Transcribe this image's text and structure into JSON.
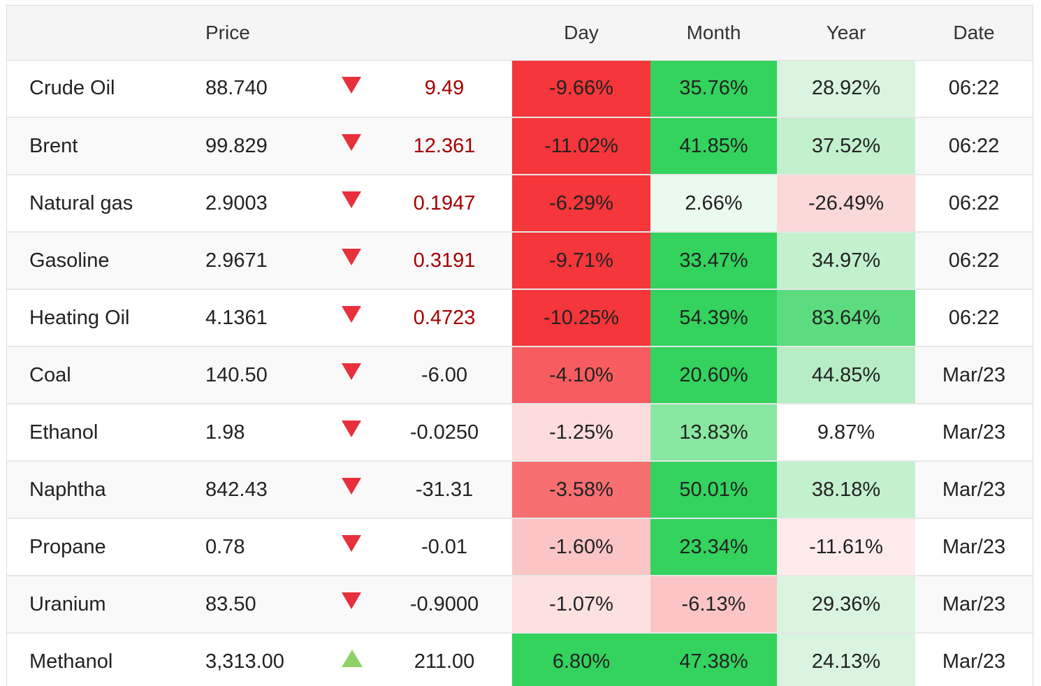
{
  "headers": {
    "name": "",
    "price": "Price",
    "arrow": "",
    "change": "",
    "day": "Day",
    "month": "Month",
    "year": "Year",
    "date": "Date"
  },
  "rows": [
    {
      "name": "Crude Oil",
      "price": "88.740",
      "direction": "down",
      "change": "9.49",
      "change_red": true,
      "day": "-9.66%",
      "month": "35.76%",
      "year": "28.92%",
      "date": "06:22",
      "day_bg": "#f5363a",
      "month_bg": "#33d35d",
      "year_bg": "#d9f5df"
    },
    {
      "name": "Brent",
      "price": "99.829",
      "direction": "down",
      "change": "12.361",
      "change_red": true,
      "day": "-11.02%",
      "month": "41.85%",
      "year": "37.52%",
      "date": "06:22",
      "day_bg": "#f5363a",
      "month_bg": "#33d35d",
      "year_bg": "#c3f0cd"
    },
    {
      "name": "Natural gas",
      "price": "2.9003",
      "direction": "down",
      "change": "0.1947",
      "change_red": true,
      "day": "-6.29%",
      "month": "2.66%",
      "year": "-26.49%",
      "date": "06:22",
      "day_bg": "#f5363a",
      "month_bg": "#ebfaee",
      "year_bg": "#fbd9d9"
    },
    {
      "name": "Gasoline",
      "price": "2.9671",
      "direction": "down",
      "change": "0.3191",
      "change_red": true,
      "day": "-9.71%",
      "month": "33.47%",
      "year": "34.97%",
      "date": "06:22",
      "day_bg": "#f5363a",
      "month_bg": "#33d35d",
      "year_bg": "#c3f0cd"
    },
    {
      "name": "Heating Oil",
      "price": "4.1361",
      "direction": "down",
      "change": "0.4723",
      "change_red": true,
      "day": "-10.25%",
      "month": "54.39%",
      "year": "83.64%",
      "date": "06:22",
      "day_bg": "#f5363a",
      "month_bg": "#33d35d",
      "year_bg": "#5cdc7e"
    },
    {
      "name": "Coal",
      "price": "140.50",
      "direction": "down",
      "change": "-6.00",
      "change_red": false,
      "day": "-4.10%",
      "month": "20.60%",
      "year": "44.85%",
      "date": "Mar/23",
      "day_bg": "#f75d60",
      "month_bg": "#33d35d",
      "year_bg": "#b7edc4"
    },
    {
      "name": "Ethanol",
      "price": "1.98",
      "direction": "down",
      "change": "-0.0250",
      "change_red": false,
      "day": "-1.25%",
      "month": "13.83%",
      "year": "9.87%",
      "date": "Mar/23",
      "day_bg": "#fcdcdc",
      "month_bg": "#88e7a0",
      "year_bg": "#ffffff"
    },
    {
      "name": "Naphtha",
      "price": "842.43",
      "direction": "down",
      "change": "-31.31",
      "change_red": false,
      "day": "-3.58%",
      "month": "50.01%",
      "year": "38.18%",
      "date": "Mar/23",
      "day_bg": "#f86f72",
      "month_bg": "#33d35d",
      "year_bg": "#c3f0cd"
    },
    {
      "name": "Propane",
      "price": "0.78",
      "direction": "down",
      "change": "-0.01",
      "change_red": false,
      "day": "-1.60%",
      "month": "23.34%",
      "year": "-11.61%",
      "date": "Mar/23",
      "day_bg": "#fbc5c6",
      "month_bg": "#33d35d",
      "year_bg": "#fdebeb"
    },
    {
      "name": "Uranium",
      "price": "83.50",
      "direction": "down",
      "change": "-0.9000",
      "change_red": false,
      "day": "-1.07%",
      "month": "-6.13%",
      "year": "29.36%",
      "date": "Mar/23",
      "day_bg": "#fde1e1",
      "month_bg": "#fbc5c6",
      "year_bg": "#d9f5df"
    },
    {
      "name": "Methanol",
      "price": "3,313.00",
      "direction": "up",
      "change": "211.00",
      "change_red": false,
      "day": "6.80%",
      "month": "47.38%",
      "year": "24.13%",
      "date": "Mar/23",
      "day_bg": "#33d35d",
      "month_bg": "#33d35d",
      "year_bg": "#d9f5df"
    }
  ],
  "icons": {
    "down": "triangle-down-icon",
    "up": "triangle-up-icon"
  },
  "colors": {
    "down_arrow": "#e8303c",
    "up_arrow": "#8fd26a",
    "negative_change_text": "#a50000"
  }
}
